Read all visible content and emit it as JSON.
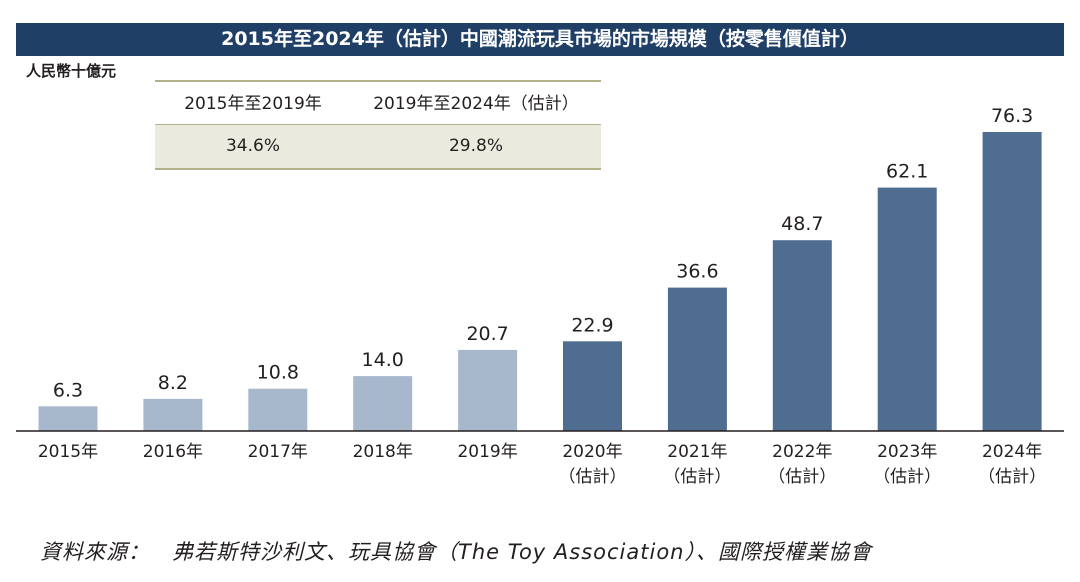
{
  "title": "2015年至2024年（估計）中國潮流玩具市場的市場規模（按零售價值計）",
  "unit_label": "人民幣十億元",
  "cagr_table": {
    "headers": [
      "2015年至2019年",
      "2019年至2024年（估計）"
    ],
    "values": [
      "34.6%",
      "29.8%"
    ]
  },
  "source": "資料來源：　弗若斯特沙利文、玩具協會（The Toy Association）、國際授權業協會",
  "colors": {
    "title_bg": "#1f3f66",
    "historical": "#a8b8cc",
    "forecast": "#4f6d91",
    "table_shade": "#ebeade",
    "table_line": "#b4b08a"
  },
  "chart_data": {
    "type": "bar",
    "title": "2015年至2024年（估計）中國潮流玩具市場的市場規模（按零售價值計）",
    "ylabel": "人民幣十億元",
    "xlabel": "",
    "categories": [
      "2015年",
      "2016年",
      "2017年",
      "2018年",
      "2019年",
      "2020年",
      "2021年",
      "2022年",
      "2023年",
      "2024年"
    ],
    "category_notes": [
      "",
      "",
      "",
      "",
      "",
      "（估計）",
      "（估計）",
      "（估計）",
      "（估計）",
      "（估計）"
    ],
    "values": [
      6.3,
      8.2,
      10.8,
      14.0,
      20.7,
      22.9,
      36.6,
      48.7,
      62.1,
      76.3
    ],
    "labels": [
      "6.3",
      "8.2",
      "10.8",
      "14.0",
      "20.7",
      "22.9",
      "36.6",
      "48.7",
      "62.1",
      "76.3"
    ],
    "forecast": [
      false,
      false,
      false,
      false,
      false,
      true,
      true,
      true,
      true,
      true
    ],
    "ylim": [
      0,
      80
    ],
    "grid": false
  }
}
